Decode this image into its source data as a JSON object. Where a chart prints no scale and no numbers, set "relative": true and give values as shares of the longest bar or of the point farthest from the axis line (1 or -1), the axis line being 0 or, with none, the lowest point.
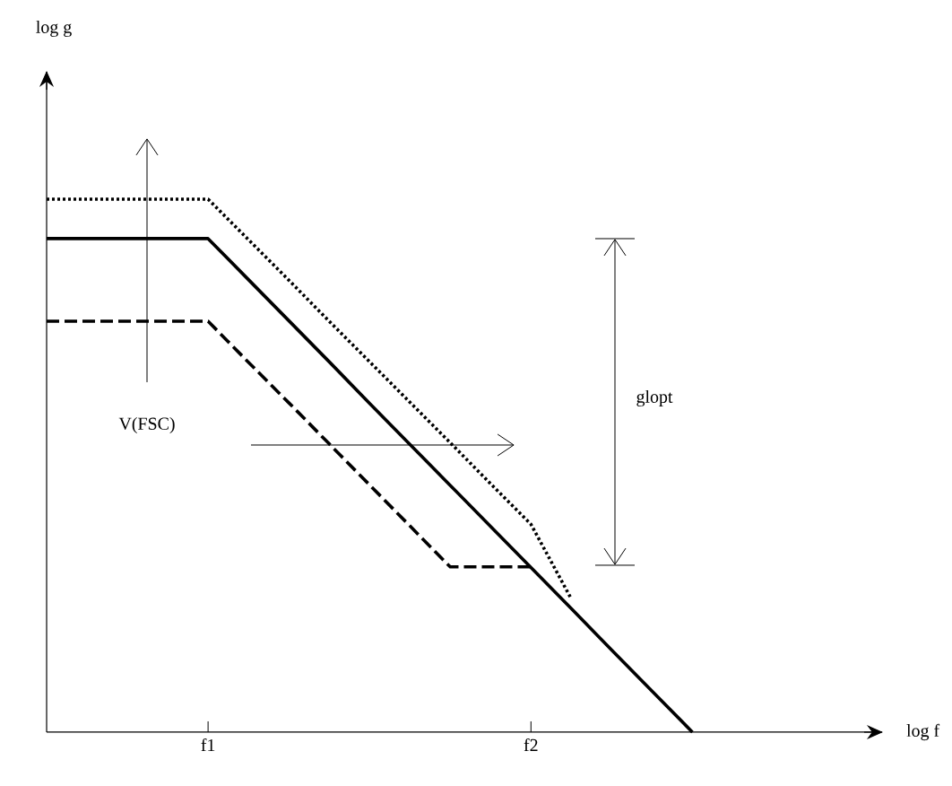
{
  "chart_data": {
    "type": "line",
    "relative": true,
    "xlabel": "log f",
    "categories": [
      null,
      null,
      null,
      null,
      "f1",
      null,
      null,
      null,
      null,
      null,
      null,
      null,
      "f2",
      null,
      null,
      null,
      null,
      null,
      null,
      null,
      null
    ],
    "annotations": [
      "log g",
      "V(FSC)",
      "glopt"
    ],
    "series": [
      {
        "color": "#000000",
        "line_style": "dotted",
        "values": [
          1,
          1,
          1,
          1,
          1,
          0.924,
          0.848,
          0.771,
          0.695,
          0.619,
          0.543,
          0.466,
          0.39,
          0.25,
          null,
          null,
          null,
          null,
          null,
          null,
          null
        ]
      },
      {
        "color": "#000000",
        "line_style": "solid",
        "values": [
          0.926,
          0.926,
          0.926,
          0.926,
          0.926,
          0.849,
          0.772,
          0.695,
          0.617,
          0.54,
          0.463,
          0.386,
          0.309,
          0.232,
          0.154,
          0.077,
          0,
          null,
          null,
          null,
          null
        ]
      },
      {
        "color": "#000000",
        "line_style": "dashed",
        "values": [
          0.771,
          0.771,
          0.771,
          0.771,
          0.771,
          0.694,
          0.618,
          0.541,
          0.464,
          0.387,
          0.31,
          0.31,
          0.31,
          null,
          null,
          null,
          null,
          null,
          null,
          null,
          null
        ]
      }
    ],
    "grid": false,
    "marker": "none"
  }
}
